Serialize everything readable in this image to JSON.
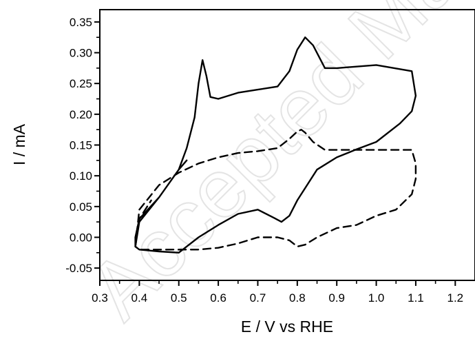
{
  "chart_data": {
    "type": "line",
    "xlabel": "E / V vs RHE",
    "ylabel": "I / mA",
    "xlim": [
      0.3,
      1.25
    ],
    "ylim": [
      -0.07,
      0.37
    ],
    "xticks": [
      "0.3",
      "0.4",
      "0.5",
      "0.6",
      "0.7",
      "0.8",
      "0.9",
      "1.0",
      "1.1",
      "1.2"
    ],
    "yticks": [
      "-0.05",
      "0.00",
      "0.05",
      "0.10",
      "0.15",
      "0.20",
      "0.25",
      "0.30",
      "0.35"
    ],
    "grid": false,
    "legend": "none",
    "watermark": "Accepted Manuscript",
    "series": [
      {
        "style": "solid",
        "color": "#000000",
        "x": [
          0.39,
          0.4,
          0.45,
          0.5,
          0.52,
          0.54,
          0.55,
          0.56,
          0.57,
          0.58,
          0.6,
          0.65,
          0.7,
          0.75,
          0.78,
          0.8,
          0.82,
          0.84,
          0.87,
          0.9,
          1.0,
          1.09,
          1.1,
          1.09,
          1.06,
          1.0,
          0.95,
          0.9,
          0.85,
          0.8,
          0.78,
          0.76,
          0.74,
          0.7,
          0.65,
          0.6,
          0.55,
          0.5,
          0.45,
          0.4,
          0.39,
          0.39,
          0.4,
          0.45,
          0.5,
          0.52
        ],
        "y": [
          -0.015,
          0.025,
          0.065,
          0.11,
          0.145,
          0.195,
          0.25,
          0.288,
          0.262,
          0.228,
          0.225,
          0.235,
          0.24,
          0.245,
          0.27,
          0.305,
          0.325,
          0.312,
          0.275,
          0.275,
          0.28,
          0.27,
          0.23,
          0.205,
          0.185,
          0.155,
          0.143,
          0.13,
          0.11,
          0.06,
          0.035,
          0.025,
          0.032,
          0.045,
          0.038,
          0.02,
          0.0,
          -0.025,
          -0.023,
          -0.02,
          -0.015,
          0.0,
          0.03,
          0.065,
          0.11,
          0.125
        ]
      },
      {
        "style": "dashed",
        "color": "#000000",
        "x": [
          0.39,
          0.4,
          0.45,
          0.5,
          0.55,
          0.6,
          0.65,
          0.7,
          0.75,
          0.78,
          0.8,
          0.81,
          0.82,
          0.84,
          0.87,
          0.9,
          1.0,
          1.09,
          1.1,
          1.1,
          1.09,
          1.05,
          1.0,
          0.95,
          0.9,
          0.85,
          0.82,
          0.8,
          0.78,
          0.75,
          0.7,
          0.65,
          0.6,
          0.55,
          0.5,
          0.45,
          0.4,
          0.39,
          0.4,
          0.43
        ],
        "y": [
          -0.015,
          0.045,
          0.085,
          0.105,
          0.12,
          0.13,
          0.137,
          0.14,
          0.145,
          0.16,
          0.172,
          0.175,
          0.17,
          0.155,
          0.142,
          0.142,
          0.142,
          0.142,
          0.12,
          0.095,
          0.07,
          0.045,
          0.035,
          0.02,
          0.015,
          0.0,
          -0.012,
          -0.015,
          -0.005,
          0.0,
          0.0,
          -0.01,
          -0.017,
          -0.02,
          -0.02,
          -0.02,
          -0.02,
          -0.015,
          0.03,
          0.06
        ]
      }
    ]
  }
}
